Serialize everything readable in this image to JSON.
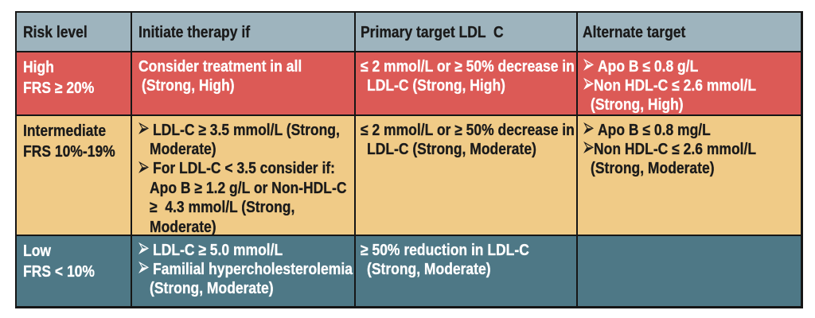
{
  "colors": {
    "header_bg": "#9eb4be",
    "high_row_bg": "#dc5a56",
    "intermediate_row_bg": "#f0cb87",
    "low_row_bg": "#4e7886",
    "border": "#161616",
    "dark_text": "#1b1b1b",
    "light_text": "#ffffff"
  },
  "glyphs": {
    "bullet": "➢"
  },
  "chart_data": {
    "type": "table",
    "columns": [
      "Risk level",
      "Initiate therapy if",
      "Primary target LDL  C",
      "Alternate target"
    ],
    "rows": [
      {
        "risk_level": "High FRS ≥ 20%",
        "initiate_therapy_if": "Consider treatment in all (Strong, High)",
        "primary_target": "≤ 2 mmol/L or ≥ 50% decrease in LDL-C (Strong, High)",
        "alternate_target": "➢ Apo B ≤ 0.8 g/L ➢Non HDL-C ≤ 2.6 mmol/L (Strong, High)"
      },
      {
        "risk_level": "Intermediate FRS 10%-19%",
        "initiate_therapy_if": "➢ LDL-C ≥ 3.5 mmol/L (Strong, Moderate) ➢ For LDL-C < 3.5 consider if: Apo B ≥ 1.2 g/L or Non-HDL-C ≥  4.3 mmol/L (Strong, Moderate)",
        "primary_target": "≤ 2 mmol/L or ≥ 50% decrease in LDL-C (Strong, Moderate)",
        "alternate_target": "➢ Apo B ≤ 0.8 mg/L ➢Non HDL-C ≤ 2.6 mmol/L (Strong, Moderate)"
      },
      {
        "risk_level": "Low FRS < 10%",
        "initiate_therapy_if": "➢ LDL-C ≥ 5.0 mmol/L ➢ Familial hypercholesterolemia (Strong, Moderate)",
        "primary_target": "≥ 50% reduction in LDL-C (Strong, Moderate)",
        "alternate_target": ""
      }
    ]
  },
  "header": {
    "col1": "Risk level",
    "col2": "Initiate therapy if",
    "col3": "Primary target LDL  C",
    "col4": "Alternate target"
  },
  "r1": {
    "c1": {
      "l1": "High",
      "l2": "FRS ≥ 20%"
    },
    "c2": {
      "l1": "Consider treatment in all",
      "l2": "(Strong, High)"
    },
    "c3": {
      "l1": "≤ 2 mmol/L or ≥ 50% decrease in",
      "l2": "LDL-C (Strong, High)"
    },
    "c4": {
      "l1": "Apo B ≤ 0.8 g/L",
      "l2": "Non HDL-C ≤ 2.6 mmol/L",
      "l3": "(Strong, High)"
    }
  },
  "r2": {
    "c1": {
      "l1": "Intermediate",
      "l2": "FRS 10%-19%"
    },
    "c2": {
      "l1": "LDL-C ≥ 3.5 mmol/L (Strong,",
      "l2": "Moderate)",
      "l3": "For LDL-C < 3.5 consider if:",
      "l4": "Apo B ≥ 1.2 g/L or Non-HDL-C",
      "l5": "≥  4.3 mmol/L (Strong,",
      "l6": "Moderate)"
    },
    "c3": {
      "l1": "≤ 2 mmol/L or ≥ 50% decrease in",
      "l2": "LDL-C (Strong, Moderate)"
    },
    "c4": {
      "l1": "Apo B ≤ 0.8 mg/L",
      "l2": "Non HDL-C ≤ 2.6 mmol/L",
      "l3": "(Strong, Moderate)"
    }
  },
  "r3": {
    "c1": {
      "l1": "Low",
      "l2": "FRS < 10%"
    },
    "c2": {
      "l1": "LDL-C ≥ 5.0 mmol/L",
      "l2": "Familial hypercholesterolemia",
      "l3": "(Strong, Moderate)"
    },
    "c3": {
      "l1": "≥ 50% reduction in LDL-C",
      "l2": "(Strong, Moderate)"
    }
  }
}
